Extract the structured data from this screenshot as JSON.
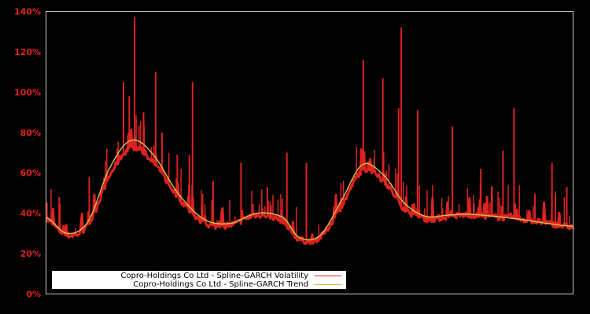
{
  "chart_data": {
    "type": "line",
    "title": "",
    "xlabel": "",
    "ylabel": "",
    "ylim": [
      0,
      140
    ],
    "yticks": [
      0,
      20,
      40,
      60,
      80,
      100,
      120,
      140
    ],
    "ytick_labels": [
      "0%",
      "20%",
      "40%",
      "60%",
      "80%",
      "100%",
      "120%",
      "140%"
    ],
    "xticks_visible": false,
    "grid": false,
    "legend_position": "lower left",
    "x": [
      0,
      4,
      8,
      12,
      16,
      20,
      25,
      30,
      35,
      40,
      45,
      48,
      52,
      56,
      60,
      64,
      68,
      72,
      76,
      80,
      85,
      90,
      95,
      100
    ],
    "series": [
      {
        "name": "Copro-Holdings Co Ltd - Spline-GARCH Volatility",
        "color": "#dd2222",
        "values": [
          37,
          29,
          34,
          58,
          72,
          66,
          48,
          35,
          34,
          39,
          36,
          27,
          28,
          43,
          61,
          56,
          42,
          37,
          38,
          39,
          38,
          37,
          35,
          33
        ],
        "spikes": [
          {
            "x": 16.8,
            "value": 137
          },
          {
            "x": 14.7,
            "value": 105
          },
          {
            "x": 20.8,
            "value": 110
          },
          {
            "x": 27.8,
            "value": 105
          },
          {
            "x": 15.8,
            "value": 98
          },
          {
            "x": 18.5,
            "value": 90
          },
          {
            "x": 22.0,
            "value": 80
          },
          {
            "x": 27.2,
            "value": 69
          },
          {
            "x": 24.9,
            "value": 69
          },
          {
            "x": 13.5,
            "value": 72
          },
          {
            "x": 37.0,
            "value": 65
          },
          {
            "x": 45.7,
            "value": 70
          },
          {
            "x": 49.4,
            "value": 65
          },
          {
            "x": 60.2,
            "value": 116
          },
          {
            "x": 67.4,
            "value": 132
          },
          {
            "x": 63.9,
            "value": 107
          },
          {
            "x": 66.9,
            "value": 92
          },
          {
            "x": 70.5,
            "value": 91
          },
          {
            "x": 77.1,
            "value": 83
          },
          {
            "x": 88.8,
            "value": 92
          },
          {
            "x": 86.7,
            "value": 71
          },
          {
            "x": 96.0,
            "value": 65
          },
          {
            "x": 98.8,
            "value": 53
          },
          {
            "x": 82.5,
            "value": 62
          },
          {
            "x": 42.0,
            "value": 53
          },
          {
            "x": 31.7,
            "value": 56
          },
          {
            "x": 8.2,
            "value": 58
          },
          {
            "x": 2.5,
            "value": 48
          }
        ]
      },
      {
        "name": "Copro-Holdings Co Ltd - Spline-GARCH Trend",
        "color": "#d4b84a",
        "values": [
          38,
          30,
          36,
          62,
          76,
          70,
          50,
          37,
          35,
          40,
          38,
          28,
          29,
          46,
          64,
          59,
          45,
          38.5,
          39,
          39.5,
          38.5,
          37,
          35,
          33.5
        ]
      }
    ]
  },
  "legend": {
    "items": [
      {
        "label": "Copro-Holdings Co Ltd - Spline-GARCH Volatility",
        "color": "#dd2222"
      },
      {
        "label": "Copro-Holdings Co Ltd - Spline-GARCH Trend",
        "color": "#d4b84a"
      }
    ]
  },
  "colors": {
    "background": "#000000",
    "axis": "#c8c8c8",
    "tick_label": "#dd2222"
  }
}
